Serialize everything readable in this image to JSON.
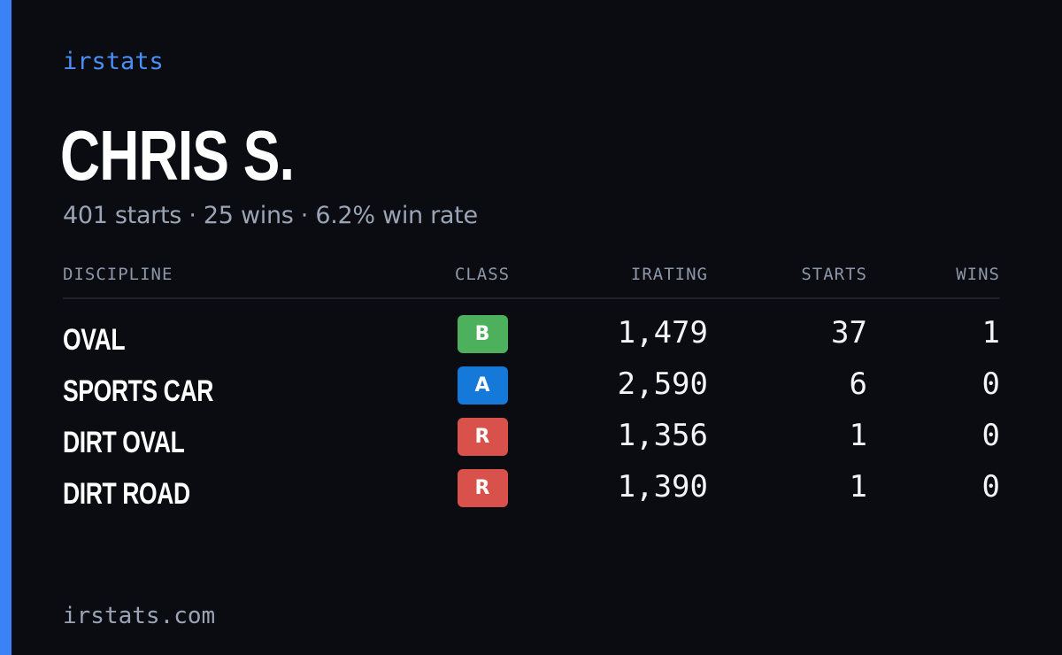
{
  "brand": "irstats",
  "player": {
    "name": "CHRIS S.",
    "summary": "401 starts · 25 wins · 6.2% win rate"
  },
  "table": {
    "headers": {
      "discipline": "DISCIPLINE",
      "class": "CLASS",
      "irating": "IRATING",
      "starts": "STARTS",
      "wins": "WINS"
    },
    "rows": [
      {
        "discipline": "OVAL",
        "class": "B",
        "class_color": "#4cb05c",
        "irating": "1,479",
        "starts": "37",
        "wins": "1"
      },
      {
        "discipline": "SPORTS CAR",
        "class": "A",
        "class_color": "#1479d8",
        "irating": "2,590",
        "starts": "6",
        "wins": "0"
      },
      {
        "discipline": "DIRT OVAL",
        "class": "R",
        "class_color": "#d8524b",
        "irating": "1,356",
        "starts": "1",
        "wins": "0"
      },
      {
        "discipline": "DIRT ROAD",
        "class": "R",
        "class_color": "#d8524b",
        "irating": "1,390",
        "starts": "1",
        "wins": "0"
      }
    ]
  },
  "footer": {
    "url": "irstats.com"
  },
  "colors": {
    "background": "#0a0c12",
    "accent": "#3b82f6",
    "brand_text": "#4a8ff7",
    "muted_text": "#9aa4b4"
  }
}
